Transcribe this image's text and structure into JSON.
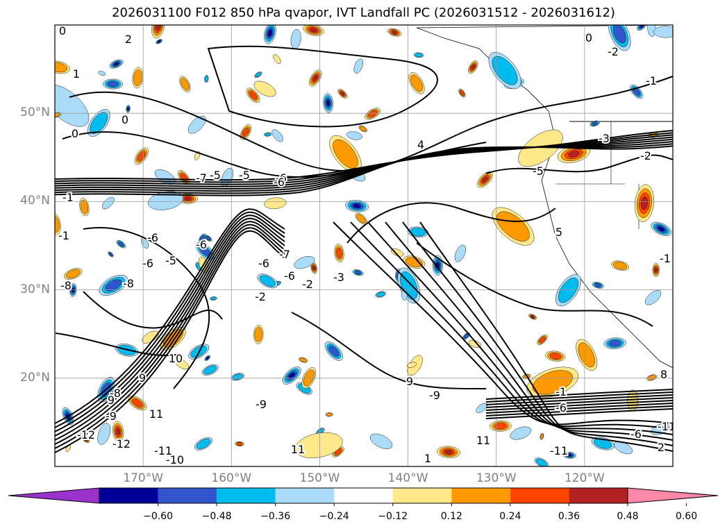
{
  "title": "2026031100 F012 850 hPa qvapor, IVT Landfall PC (2026031512 - 2026031612)",
  "map": {
    "projection": "cylindrical",
    "lon_range": [
      -180,
      -110
    ],
    "lat_range": [
      10,
      60
    ],
    "lat_ticks": [
      {
        "value": 50,
        "label": "50°N"
      },
      {
        "value": 40,
        "label": "40°N"
      },
      {
        "value": 30,
        "label": "30°N"
      },
      {
        "value": 20,
        "label": "20°N"
      }
    ],
    "lon_ticks": [
      {
        "value": -170,
        "label": "170°W"
      },
      {
        "value": -160,
        "label": "160°W"
      },
      {
        "value": -150,
        "label": "150°W"
      },
      {
        "value": -140,
        "label": "140°W"
      },
      {
        "value": -130,
        "label": "130°W"
      },
      {
        "value": -120,
        "label": "120°W"
      }
    ],
    "grid": true,
    "contour_labels": [
      "0",
      "2",
      "1",
      "0",
      "0",
      "-1",
      "4",
      "-5",
      "-3",
      "-2",
      "-1",
      "-2",
      "0",
      "9",
      "9",
      "-1",
      "-7",
      "-5",
      "-5",
      "-6",
      "-6",
      "-6",
      "-6",
      "-6",
      "-5",
      "-8",
      "-8",
      "-6",
      "-7",
      "-6",
      "-2",
      "-2",
      "-3",
      "5",
      "-1",
      "-8",
      "-9",
      "-9",
      "9",
      "10",
      "11",
      "-12",
      "-11",
      "-10",
      "-12",
      "11",
      "11",
      "-11",
      "-6",
      "-6",
      "-11",
      "1",
      "-1",
      "8",
      "-9",
      "2"
    ]
  },
  "colorbar": {
    "extend": "both",
    "colors": [
      "#9933cc",
      "#000099",
      "#3355cc",
      "#00bbee",
      "#aadcfa",
      "#ffffff",
      "#ffe88a",
      "#ff9900",
      "#ff4400",
      "#b22222",
      "#ff88aa"
    ],
    "tick_labels": [
      "−0.60",
      "−0.48",
      "−0.36",
      "−0.24",
      "−0.12",
      "0.12",
      "0.24",
      "0.36",
      "0.48",
      "0.60"
    ]
  }
}
